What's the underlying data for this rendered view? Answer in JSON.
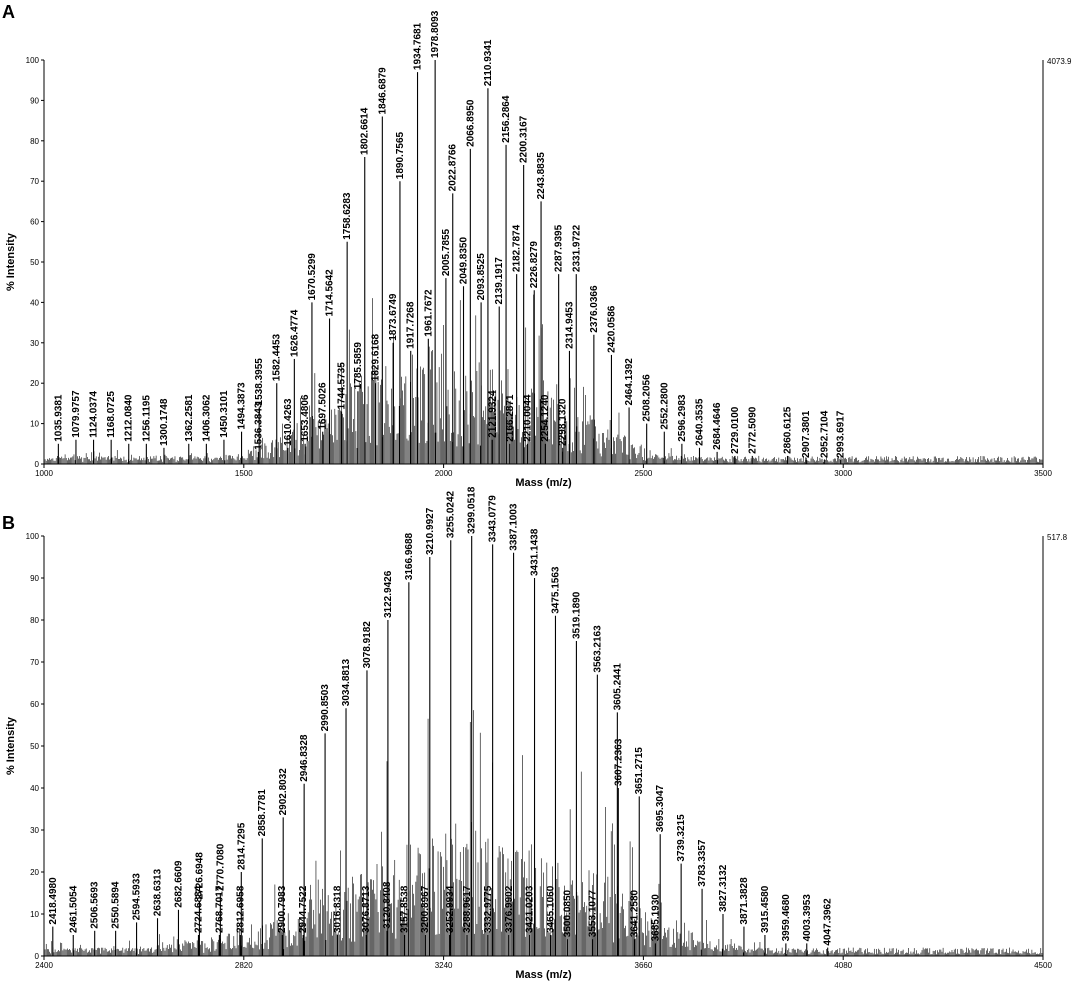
{
  "chart_data": [
    {
      "type": "line",
      "panel_label": "A",
      "xlabel": "Mass (m/z)",
      "ylabel": "% Intensity",
      "xlim": [
        1000,
        3500
      ],
      "ylim": [
        0,
        100
      ],
      "x_ticks": [
        "1000",
        "1500",
        "2000",
        "2500",
        "3000",
        "3500"
      ],
      "y_ticks": [
        "0",
        "10",
        "20",
        "30",
        "40",
        "50",
        "60",
        "70",
        "80",
        "90",
        "100"
      ],
      "max_intensity": "4073.9",
      "peaks": [
        {
          "label": "1035.9381",
          "x": 1035.9381,
          "y": 5
        },
        {
          "label": "1079.9757",
          "x": 1079.9757,
          "y": 6
        },
        {
          "label": "1124.0374",
          "x": 1124.0374,
          "y": 6
        },
        {
          "label": "1168.0725",
          "x": 1168.0725,
          "y": 6
        },
        {
          "label": "1212.0840",
          "x": 1212.084,
          "y": 5
        },
        {
          "label": "1256.1195",
          "x": 1256.1195,
          "y": 5
        },
        {
          "label": "1300.1748",
          "x": 1300.1748,
          "y": 4
        },
        {
          "label": "1362.2581",
          "x": 1362.2581,
          "y": 5
        },
        {
          "label": "1406.3062",
          "x": 1406.3062,
          "y": 5
        },
        {
          "label": "1450.3101",
          "x": 1450.3101,
          "y": 6
        },
        {
          "label": "1494.3873",
          "x": 1494.3873,
          "y": 8
        },
        {
          "label": "1538.3955",
          "x": 1538.3955,
          "y": 14
        },
        {
          "label": "1536.3843",
          "x": 1536.3843,
          "y": 3
        },
        {
          "label": "1582.4453",
          "x": 1582.4453,
          "y": 20
        },
        {
          "label": "1610.4263",
          "x": 1610.4263,
          "y": 4
        },
        {
          "label": "1626.4774",
          "x": 1626.4774,
          "y": 26
        },
        {
          "label": "1653.4806",
          "x": 1653.4806,
          "y": 5
        },
        {
          "label": "1670.5299",
          "x": 1670.5299,
          "y": 40
        },
        {
          "label": "1697.5026",
          "x": 1697.5026,
          "y": 8
        },
        {
          "label": "1714.5642",
          "x": 1714.5642,
          "y": 36
        },
        {
          "label": "1744.5735",
          "x": 1744.5735,
          "y": 13
        },
        {
          "label": "1758.6283",
          "x": 1758.6283,
          "y": 55
        },
        {
          "label": "1785.5859",
          "x": 1785.5859,
          "y": 18
        },
        {
          "label": "1802.6614",
          "x": 1802.6614,
          "y": 76
        },
        {
          "label": "1829.6168",
          "x": 1829.6168,
          "y": 20
        },
        {
          "label": "1846.6879",
          "x": 1846.6879,
          "y": 86
        },
        {
          "label": "1873.6749",
          "x": 1873.6749,
          "y": 30
        },
        {
          "label": "1890.7565",
          "x": 1890.7565,
          "y": 70
        },
        {
          "label": "1917.7268",
          "x": 1917.7268,
          "y": 28
        },
        {
          "label": "1934.7681",
          "x": 1934.7681,
          "y": 97
        },
        {
          "label": "1961.7672",
          "x": 1961.7672,
          "y": 31
        },
        {
          "label": "1978.8093",
          "x": 1978.8093,
          "y": 100
        },
        {
          "label": "2005.7855",
          "x": 2005.7855,
          "y": 46
        },
        {
          "label": "2022.8766",
          "x": 2022.8766,
          "y": 67
        },
        {
          "label": "2049.8350",
          "x": 2049.835,
          "y": 44
        },
        {
          "label": "2066.8950",
          "x": 2066.895,
          "y": 78
        },
        {
          "label": "2093.8525",
          "x": 2093.8525,
          "y": 40
        },
        {
          "label": "2110.9341",
          "x": 2110.9341,
          "y": 93
        },
        {
          "label": "2139.1917",
          "x": 2139.1917,
          "y": 39
        },
        {
          "label": "2156.2864",
          "x": 2156.2864,
          "y": 79
        },
        {
          "label": "2182.7874",
          "x": 2182.7874,
          "y": 47
        },
        {
          "label": "2200.3167",
          "x": 2200.3167,
          "y": 74
        },
        {
          "label": "2226.8279",
          "x": 2226.8279,
          "y": 43
        },
        {
          "label": "2243.8835",
          "x": 2243.8835,
          "y": 65
        },
        {
          "label": "2287.9395",
          "x": 2287.9395,
          "y": 47
        },
        {
          "label": "2314.9453",
          "x": 2314.9453,
          "y": 28
        },
        {
          "label": "2331.9722",
          "x": 2331.9722,
          "y": 47
        },
        {
          "label": "2376.0366",
          "x": 2376.0366,
          "y": 32
        },
        {
          "label": "2420.0586",
          "x": 2420.0586,
          "y": 27
        },
        {
          "label": "2464.1392",
          "x": 2464.1392,
          "y": 14
        },
        {
          "label": "2508.2056",
          "x": 2508.2056,
          "y": 10
        },
        {
          "label": "2552.2800",
          "x": 2552.28,
          "y": 8
        },
        {
          "label": "2596.2983",
          "x": 2596.2983,
          "y": 5
        },
        {
          "label": "2640.3535",
          "x": 2640.3535,
          "y": 4
        },
        {
          "label": "2684.4646",
          "x": 2684.4646,
          "y": 3
        },
        {
          "label": "2729.0100",
          "x": 2729.01,
          "y": 2
        },
        {
          "label": "2772.5090",
          "x": 2772.509,
          "y": 2
        },
        {
          "label": "2860.6125",
          "x": 2860.6125,
          "y": 2
        },
        {
          "label": "2907.3801",
          "x": 2907.3801,
          "y": 1
        },
        {
          "label": "2952.7104",
          "x": 2952.7104,
          "y": 1
        },
        {
          "label": "2993.6917",
          "x": 2993.6917,
          "y": 1
        },
        {
          "label": "2121.9324",
          "x": 2121.9324,
          "y": 6
        },
        {
          "label": "2166.2871",
          "x": 2166.2871,
          "y": 5
        },
        {
          "label": "2210.0044",
          "x": 2210.0044,
          "y": 5
        },
        {
          "label": "2254.1240",
          "x": 2254.124,
          "y": 5
        },
        {
          "label": "2298.1320",
          "x": 2298.132,
          "y": 4
        }
      ]
    },
    {
      "type": "line",
      "panel_label": "B",
      "xlabel": "Mass (m/z)",
      "ylabel": "% Intensity",
      "xlim": [
        2400,
        4500
      ],
      "ylim": [
        0,
        100
      ],
      "x_ticks": [
        "2400",
        "2820",
        "3240",
        "3660",
        "4080",
        "4500"
      ],
      "y_ticks": [
        "0",
        "10",
        "20",
        "30",
        "40",
        "50",
        "60",
        "70",
        "80",
        "90",
        "100"
      ],
      "max_intensity": "517.8",
      "peaks": [
        {
          "label": "2418.4980",
          "x": 2418.498,
          "y": 7
        },
        {
          "label": "2461.5054",
          "x": 2461.5054,
          "y": 5
        },
        {
          "label": "2506.5693",
          "x": 2506.5693,
          "y": 6
        },
        {
          "label": "2550.5894",
          "x": 2550.5894,
          "y": 6
        },
        {
          "label": "2594.5933",
          "x": 2594.5933,
          "y": 8
        },
        {
          "label": "2638.6313",
          "x": 2638.6313,
          "y": 9
        },
        {
          "label": "2682.6609",
          "x": 2682.6609,
          "y": 11
        },
        {
          "label": "2724.6834",
          "x": 2724.6834,
          "y": 5
        },
        {
          "label": "2726.6948",
          "x": 2726.6948,
          "y": 13
        },
        {
          "label": "2768.7017",
          "x": 2768.7017,
          "y": 5
        },
        {
          "label": "2770.7080",
          "x": 2770.708,
          "y": 15
        },
        {
          "label": "2812.6958",
          "x": 2812.6958,
          "y": 5
        },
        {
          "label": "2814.7295",
          "x": 2814.7295,
          "y": 20
        },
        {
          "label": "2858.7781",
          "x": 2858.7781,
          "y": 28
        },
        {
          "label": "2900.7983",
          "x": 2900.7983,
          "y": 5
        },
        {
          "label": "2902.8032",
          "x": 2902.8032,
          "y": 33
        },
        {
          "label": "2944.7522",
          "x": 2944.7522,
          "y": 5
        },
        {
          "label": "2946.8328",
          "x": 2946.8328,
          "y": 41
        },
        {
          "label": "2990.8503",
          "x": 2990.8503,
          "y": 53
        },
        {
          "label": "3016.8318",
          "x": 3016.8318,
          "y": 5
        },
        {
          "label": "3034.8813",
          "x": 3034.8813,
          "y": 59
        },
        {
          "label": "3076.8713",
          "x": 3076.8713,
          "y": 5
        },
        {
          "label": "3078.9182",
          "x": 3078.9182,
          "y": 68
        },
        {
          "label": "3120.8408",
          "x": 3120.8408,
          "y": 6
        },
        {
          "label": "3122.9426",
          "x": 3122.9426,
          "y": 80
        },
        {
          "label": "3157.8538",
          "x": 3157.8538,
          "y": 5
        },
        {
          "label": "3166.9688",
          "x": 3166.9688,
          "y": 89
        },
        {
          "label": "3200.8967",
          "x": 3200.8967,
          "y": 5
        },
        {
          "label": "3210.9927",
          "x": 3210.9927,
          "y": 95
        },
        {
          "label": "3252.9934",
          "x": 3252.9934,
          "y": 5
        },
        {
          "label": "3255.0242",
          "x": 3255.0242,
          "y": 99
        },
        {
          "label": "3288.9617",
          "x": 3288.9617,
          "y": 5
        },
        {
          "label": "3299.0518",
          "x": 3299.0518,
          "y": 100
        },
        {
          "label": "3332.9775",
          "x": 3332.9775,
          "y": 5
        },
        {
          "label": "3343.0779",
          "x": 3343.0779,
          "y": 98
        },
        {
          "label": "3376.9902",
          "x": 3376.9902,
          "y": 5
        },
        {
          "label": "3387.1003",
          "x": 3387.1003,
          "y": 96
        },
        {
          "label": "3421.0203",
          "x": 3421.0203,
          "y": 5
        },
        {
          "label": "3431.1438",
          "x": 3431.1438,
          "y": 90
        },
        {
          "label": "3465.1060",
          "x": 3465.106,
          "y": 5
        },
        {
          "label": "3475.1563",
          "x": 3475.1563,
          "y": 81
        },
        {
          "label": "3500.0850",
          "x": 3500.085,
          "y": 4
        },
        {
          "label": "3519.1890",
          "x": 3519.189,
          "y": 75
        },
        {
          "label": "3553.1077",
          "x": 3553.1077,
          "y": 4
        },
        {
          "label": "3563.2163",
          "x": 3563.2163,
          "y": 67
        },
        {
          "label": "3605.2441",
          "x": 3605.2441,
          "y": 58
        },
        {
          "label": "3607.2363",
          "x": 3607.2363,
          "y": 40
        },
        {
          "label": "3641.2580",
          "x": 3641.258,
          "y": 4
        },
        {
          "label": "3651.2715",
          "x": 3651.2715,
          "y": 38
        },
        {
          "label": "3685.1930",
          "x": 3685.193,
          "y": 3
        },
        {
          "label": "3695.3047",
          "x": 3695.3047,
          "y": 29
        },
        {
          "label": "3739.3215",
          "x": 3739.3215,
          "y": 22
        },
        {
          "label": "3783.3357",
          "x": 3783.3357,
          "y": 16
        },
        {
          "label": "3827.3132",
          "x": 3827.3132,
          "y": 10
        },
        {
          "label": "3871.3828",
          "x": 3871.3828,
          "y": 7
        },
        {
          "label": "3915.4580",
          "x": 3915.458,
          "y": 5
        },
        {
          "label": "3959.4680",
          "x": 3959.468,
          "y": 3
        },
        {
          "label": "4003.3953",
          "x": 4003.3953,
          "y": 3
        },
        {
          "label": "4047.3962",
          "x": 4047.3962,
          "y": 2
        }
      ]
    }
  ]
}
